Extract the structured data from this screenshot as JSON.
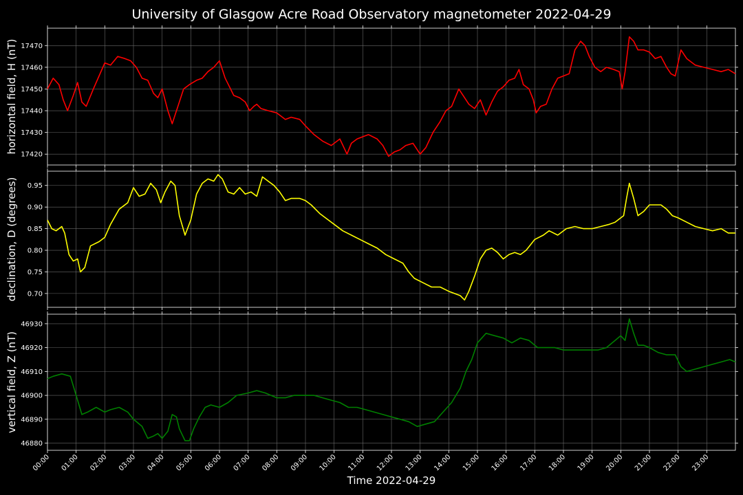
{
  "figure": {
    "title": "University of Glasgow Acre Road Observatory magnetometer 2022-04-29",
    "xlabel": "Time 2022-04-29"
  },
  "chart_data": [
    {
      "type": "line",
      "ylabel": "horizontal field, H (nT)",
      "color": "#ff0000",
      "xlim": [
        0,
        24
      ],
      "ylim": [
        17415,
        17478
      ],
      "yticks": [
        17420,
        17430,
        17440,
        17450,
        17460,
        17470
      ],
      "xticks": [
        "00:00",
        "01:00",
        "02:00",
        "03:00",
        "04:00",
        "05:00",
        "06:00",
        "07:00",
        "08:00",
        "09:00",
        "10:00",
        "11:00",
        "12:00",
        "13:00",
        "14:00",
        "15:00",
        "16:00",
        "17:00",
        "18:00",
        "19:00",
        "20:00",
        "21:00",
        "22:00",
        "23:00"
      ],
      "grid": true,
      "series": [
        {
          "x": [
            0,
            0.2,
            0.4,
            0.55,
            0.7,
            0.9,
            1.05,
            1.2,
            1.35,
            1.6,
            1.8,
            2.0,
            2.2,
            2.45,
            2.7,
            2.9,
            3.1,
            3.3,
            3.5,
            3.7,
            3.85,
            4.0,
            4.2,
            4.35,
            4.55,
            4.75,
            4.95,
            5.2,
            5.4,
            5.6,
            5.8,
            6.0,
            6.2,
            6.35,
            6.5,
            6.7,
            6.9,
            7.05,
            7.2,
            7.3,
            7.45,
            7.7,
            8.0,
            8.3,
            8.5,
            8.8,
            9.0,
            9.3,
            9.6,
            9.9,
            10.2,
            10.45,
            10.6,
            10.8,
            11.0,
            11.2,
            11.5,
            11.7,
            11.9,
            12.1,
            12.3,
            12.5,
            12.75,
            13.0,
            13.2,
            13.45,
            13.7,
            13.9,
            14.1,
            14.35,
            14.5,
            14.7,
            14.9,
            15.1,
            15.3,
            15.5,
            15.7,
            15.9,
            16.1,
            16.3,
            16.45,
            16.6,
            16.8,
            16.95,
            17.05,
            17.2,
            17.4,
            17.6,
            17.8,
            18.0,
            18.2,
            18.4,
            18.6,
            18.75,
            18.9,
            19.1,
            19.3,
            19.5,
            19.75,
            19.95,
            20.05,
            20.15,
            20.3,
            20.45,
            20.6,
            20.8,
            21.0,
            21.2,
            21.4,
            21.6,
            21.75,
            21.9,
            22.1,
            22.3,
            22.6,
            22.9,
            23.2,
            23.5,
            23.75,
            24.0
          ],
          "y": [
            17450,
            17455,
            17452,
            17445,
            17440,
            17447,
            17453,
            17444,
            17442,
            17450,
            17456,
            17462,
            17461,
            17465,
            17464,
            17463,
            17460,
            17455,
            17454,
            17448,
            17446,
            17450,
            17440,
            17434,
            17442,
            17450,
            17452,
            17454,
            17455,
            17458,
            17460,
            17463,
            17455,
            17451,
            17447,
            17446,
            17444,
            17440,
            17442,
            17443,
            17441,
            17440,
            17439,
            17436,
            17437,
            17436,
            17433,
            17429,
            17426,
            17424,
            17427,
            17420,
            17425,
            17427,
            17428,
            17429,
            17427,
            17424,
            17419,
            17421,
            17422,
            17424,
            17425,
            17420,
            17423,
            17430,
            17435,
            17440,
            17442,
            17450,
            17447,
            17443,
            17441,
            17445,
            17438,
            17444,
            17449,
            17451,
            17454,
            17455,
            17459,
            17452,
            17450,
            17445,
            17439,
            17442,
            17443,
            17450,
            17455,
            17456,
            17457,
            17468,
            17472,
            17470,
            17465,
            17460,
            17458,
            17460,
            17459,
            17458,
            17450,
            17458,
            17474,
            17472,
            17468,
            17468,
            17467,
            17464,
            17465,
            17460,
            17457,
            17456,
            17468,
            17464,
            17461,
            17460,
            17459,
            17458,
            17459,
            17457
          ]
        }
      ]
    },
    {
      "type": "line",
      "ylabel": "declination, D (degrees)",
      "color": "#ffff00",
      "xlim": [
        0,
        24
      ],
      "ylim": [
        0.668,
        0.983
      ],
      "yticks": [
        0.7,
        0.75,
        0.8,
        0.85,
        0.9,
        0.95
      ],
      "yticklabels": [
        "0.70",
        "0.75",
        "0.80",
        "0.85",
        "0.90",
        "0.95"
      ],
      "xticks": [
        "00:00",
        "01:00",
        "02:00",
        "03:00",
        "04:00",
        "05:00",
        "06:00",
        "07:00",
        "08:00",
        "09:00",
        "10:00",
        "11:00",
        "12:00",
        "13:00",
        "14:00",
        "15:00",
        "16:00",
        "17:00",
        "18:00",
        "19:00",
        "20:00",
        "21:00",
        "22:00",
        "23:00"
      ],
      "grid": true,
      "series": [
        {
          "x": [
            0,
            0.15,
            0.3,
            0.5,
            0.6,
            0.75,
            0.9,
            1.05,
            1.15,
            1.3,
            1.5,
            1.8,
            2.0,
            2.2,
            2.5,
            2.8,
            3.0,
            3.2,
            3.4,
            3.6,
            3.8,
            3.95,
            4.1,
            4.3,
            4.45,
            4.6,
            4.8,
            5.0,
            5.2,
            5.4,
            5.6,
            5.8,
            5.95,
            6.1,
            6.3,
            6.5,
            6.7,
            6.9,
            7.1,
            7.3,
            7.5,
            7.7,
            7.9,
            8.1,
            8.3,
            8.5,
            8.8,
            9.0,
            9.2,
            9.5,
            9.8,
            10.0,
            10.3,
            10.6,
            10.9,
            11.2,
            11.5,
            11.8,
            12.1,
            12.4,
            12.6,
            12.8,
            13.1,
            13.4,
            13.7,
            14.0,
            14.2,
            14.4,
            14.55,
            14.7,
            14.9,
            15.1,
            15.3,
            15.5,
            15.7,
            15.9,
            16.1,
            16.3,
            16.5,
            16.7,
            17.0,
            17.3,
            17.5,
            17.8,
            18.1,
            18.4,
            18.7,
            19.0,
            19.3,
            19.6,
            19.8,
            20.0,
            20.1,
            20.2,
            20.3,
            20.45,
            20.6,
            20.8,
            21.0,
            21.2,
            21.4,
            21.6,
            21.8,
            22.0,
            22.3,
            22.6,
            22.9,
            23.2,
            23.5,
            23.75,
            24.0
          ],
          "y": [
            0.87,
            0.85,
            0.845,
            0.855,
            0.84,
            0.79,
            0.775,
            0.78,
            0.75,
            0.76,
            0.81,
            0.82,
            0.83,
            0.86,
            0.895,
            0.91,
            0.945,
            0.925,
            0.93,
            0.955,
            0.94,
            0.91,
            0.935,
            0.96,
            0.95,
            0.88,
            0.835,
            0.87,
            0.93,
            0.955,
            0.965,
            0.96,
            0.975,
            0.965,
            0.935,
            0.93,
            0.945,
            0.93,
            0.935,
            0.925,
            0.97,
            0.96,
            0.95,
            0.935,
            0.915,
            0.92,
            0.92,
            0.915,
            0.905,
            0.885,
            0.87,
            0.86,
            0.845,
            0.835,
            0.825,
            0.815,
            0.805,
            0.79,
            0.78,
            0.77,
            0.75,
            0.735,
            0.725,
            0.715,
            0.715,
            0.705,
            0.7,
            0.695,
            0.685,
            0.705,
            0.74,
            0.78,
            0.8,
            0.805,
            0.795,
            0.78,
            0.79,
            0.795,
            0.79,
            0.8,
            0.825,
            0.835,
            0.845,
            0.835,
            0.85,
            0.855,
            0.85,
            0.85,
            0.855,
            0.86,
            0.865,
            0.875,
            0.88,
            0.92,
            0.955,
            0.92,
            0.88,
            0.89,
            0.905,
            0.905,
            0.905,
            0.895,
            0.88,
            0.875,
            0.865,
            0.855,
            0.85,
            0.845,
            0.85,
            0.84,
            0.84
          ]
        }
      ]
    },
    {
      "type": "line",
      "ylabel": "vertical field, Z (nT)",
      "color": "#008000",
      "xlim": [
        0,
        24
      ],
      "ylim": [
        46877,
        46934
      ],
      "yticks": [
        46880,
        46890,
        46900,
        46910,
        46920,
        46930
      ],
      "xticks": [
        "00:00",
        "01:00",
        "02:00",
        "03:00",
        "04:00",
        "05:00",
        "06:00",
        "07:00",
        "08:00",
        "09:00",
        "10:00",
        "11:00",
        "12:00",
        "13:00",
        "14:00",
        "15:00",
        "16:00",
        "17:00",
        "18:00",
        "19:00",
        "20:00",
        "21:00",
        "22:00",
        "23:00"
      ],
      "grid": true,
      "series": [
        {
          "x": [
            0,
            0.2,
            0.5,
            0.8,
            1.0,
            1.2,
            1.4,
            1.7,
            2.0,
            2.2,
            2.5,
            2.8,
            3.0,
            3.3,
            3.5,
            3.7,
            3.85,
            4.0,
            4.2,
            4.35,
            4.5,
            4.6,
            4.8,
            4.95,
            5.1,
            5.3,
            5.5,
            5.7,
            6.0,
            6.3,
            6.6,
            7.0,
            7.3,
            7.6,
            8.0,
            8.3,
            8.6,
            9.0,
            9.3,
            9.6,
            9.9,
            10.2,
            10.5,
            10.8,
            11.1,
            11.4,
            11.7,
            12.0,
            12.3,
            12.6,
            12.9,
            13.2,
            13.5,
            13.8,
            14.1,
            14.4,
            14.6,
            14.8,
            15.0,
            15.3,
            15.6,
            15.9,
            16.2,
            16.5,
            16.8,
            17.1,
            17.4,
            17.7,
            18.0,
            18.3,
            18.6,
            18.9,
            19.2,
            19.5,
            19.8,
            20.0,
            20.15,
            20.3,
            20.45,
            20.6,
            20.8,
            21.0,
            21.3,
            21.6,
            21.9,
            22.1,
            22.3,
            22.6,
            22.9,
            23.2,
            23.5,
            23.8,
            24.0
          ],
          "y": [
            46907,
            46908,
            46909,
            46908,
            46900,
            46892,
            46893,
            46895,
            46893,
            46894,
            46895,
            46893,
            46890,
            46887,
            46882,
            46883,
            46884,
            46882,
            46885,
            46892,
            46891,
            46886,
            46881,
            46881,
            46886,
            46891,
            46895,
            46896,
            46895,
            46897,
            46900,
            46901,
            46902,
            46901,
            46899,
            46899,
            46900,
            46900,
            46900,
            46899,
            46898,
            46897,
            46895,
            46895,
            46894,
            46893,
            46892,
            46891,
            46890,
            46889,
            46887,
            46888,
            46889,
            46893,
            46897,
            46903,
            46910,
            46915,
            46922,
            46926,
            46925,
            46924,
            46922,
            46924,
            46923,
            46920,
            46920,
            46920,
            46919,
            46919,
            46919,
            46919,
            46919,
            46920,
            46923,
            46925,
            46923,
            46932,
            46926,
            46921,
            46921,
            46920,
            46918,
            46917,
            46917,
            46912,
            46910,
            46911,
            46912,
            46913,
            46914,
            46915,
            46914
          ]
        }
      ]
    }
  ]
}
